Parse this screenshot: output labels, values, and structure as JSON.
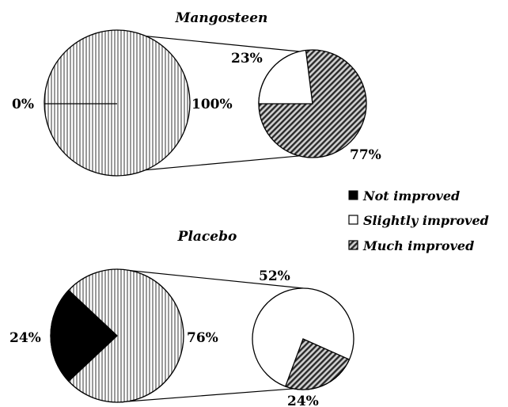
{
  "chart_data": [
    {
      "type": "pie",
      "title": "Mangosteen",
      "main_pie": {
        "slices": [
          {
            "label": "0%",
            "value": 0
          },
          {
            "label": "100%",
            "value": 100
          }
        ]
      },
      "breakdown_pie": {
        "slices": [
          {
            "category": "Slightly improved",
            "label": "23%",
            "value": 23
          },
          {
            "category": "Much improved",
            "label": "77%",
            "value": 77
          }
        ]
      }
    },
    {
      "type": "pie",
      "title": "Placebo",
      "main_pie": {
        "slices": [
          {
            "label": "24%",
            "value": 24
          },
          {
            "label": "76%",
            "value": 76
          }
        ]
      },
      "breakdown_pie": {
        "slices": [
          {
            "category": "Slightly improved",
            "label": "52%",
            "value": 52
          },
          {
            "category": "Much improved",
            "label": "24%",
            "value": 24
          }
        ]
      }
    }
  ],
  "legend": {
    "placement": "right",
    "items": [
      {
        "label": "Not improved",
        "swatch": "solid-black"
      },
      {
        "label": "Slightly improved",
        "swatch": "white"
      },
      {
        "label": "Much improved",
        "swatch": "diagonal-hatch"
      }
    ]
  },
  "colors": {
    "not_improved": "#000000",
    "slightly_improved": "#ffffff",
    "much_improved": "#555555"
  }
}
